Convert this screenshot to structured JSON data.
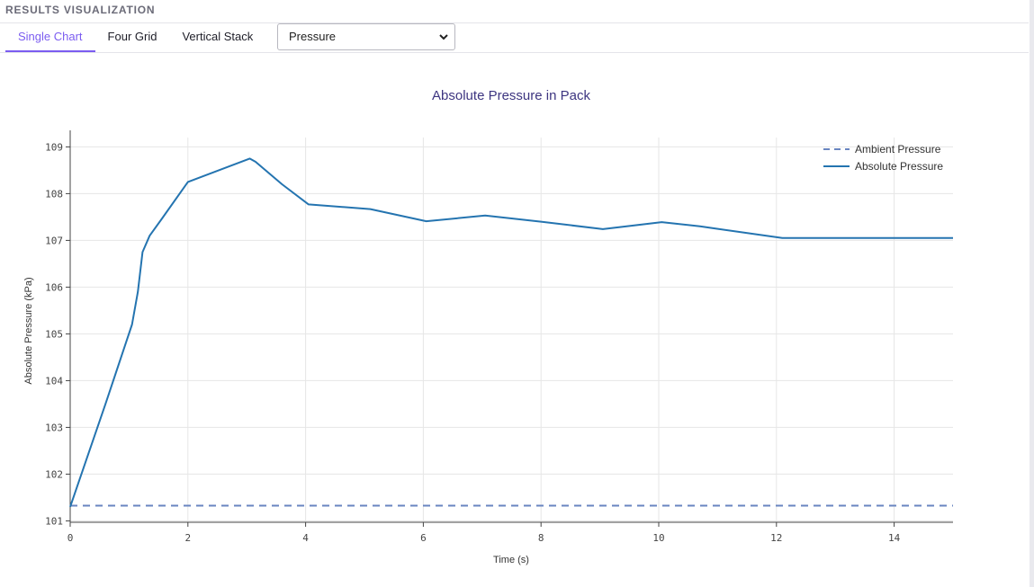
{
  "panel": {
    "title": "RESULTS VISUALIZATION"
  },
  "tabs": [
    {
      "label": "Single Chart",
      "active": true
    },
    {
      "label": "Four Grid",
      "active": false
    },
    {
      "label": "Vertical Stack",
      "active": false
    }
  ],
  "variable_select": {
    "value": "Pressure"
  },
  "colors": {
    "accent": "#7b5cf0",
    "title": "#3d3580",
    "absolute": "#2474b0",
    "ambient": "#6985c0"
  },
  "chart_data": {
    "type": "line",
    "title": "Absolute Pressure in Pack",
    "xlabel": "Time (s)",
    "ylabel": "Absolute Pressure (kPa)",
    "xlim": [
      0,
      15
    ],
    "ylim": [
      100.97,
      109.2
    ],
    "grid": true,
    "legend_position": "top-right",
    "x_ticks": [
      "0",
      "2",
      "4",
      "6",
      "8",
      "10",
      "12",
      "14"
    ],
    "y_ticks": [
      "101",
      "102",
      "103",
      "104",
      "105",
      "106",
      "107",
      "108",
      "109"
    ],
    "series": [
      {
        "name": "Ambient Pressure",
        "style": "dashed",
        "color": "#6985c0",
        "x": [
          0,
          15
        ],
        "y": [
          101.325,
          101.325
        ]
      },
      {
        "name": "Absolute Pressure",
        "style": "solid",
        "color": "#2474b0",
        "x": [
          0,
          0.6,
          1.05,
          1.15,
          1.23,
          1.35,
          1.55,
          2.0,
          3.05,
          3.15,
          3.6,
          4.05,
          5.1,
          6.05,
          7.05,
          8.0,
          9.05,
          10.05,
          10.7,
          12.1,
          13.0,
          14.0,
          15.0
        ],
        "y": [
          101.3,
          103.5,
          105.2,
          105.9,
          106.75,
          107.1,
          107.45,
          108.25,
          108.75,
          108.68,
          108.2,
          107.77,
          107.67,
          107.41,
          107.53,
          107.4,
          107.24,
          107.39,
          107.3,
          107.05,
          107.05,
          107.05,
          107.05
        ]
      }
    ]
  }
}
